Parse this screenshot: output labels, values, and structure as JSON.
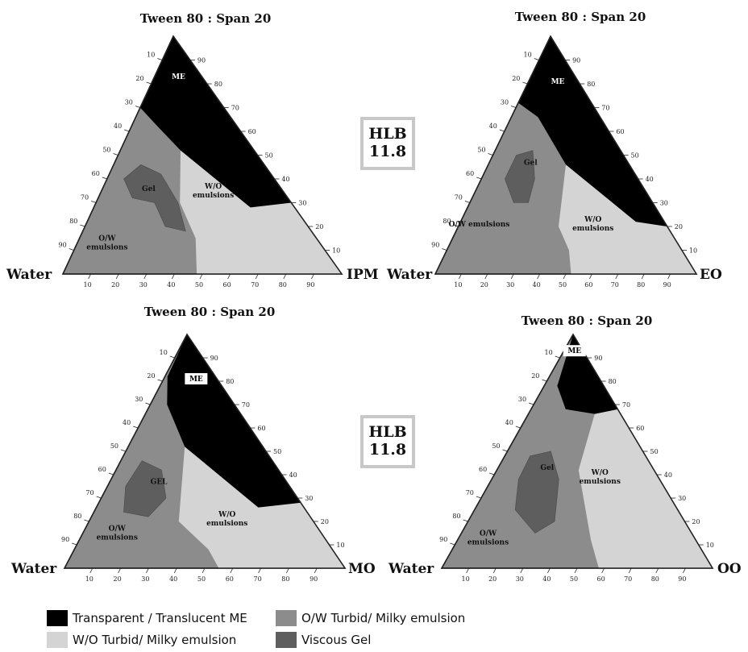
{
  "panels": [
    {
      "title": "Tween 80 : Span 20",
      "corner_left": "Water",
      "corner_right": "IPM",
      "labels": {
        "me": "ME",
        "wo": "W/O\nemulsions",
        "gel": "Gel",
        "ow": "O/W\nemulsions"
      }
    },
    {
      "title": "Tween 80 : Span 20",
      "corner_left": "Water",
      "corner_right": "EO",
      "labels": {
        "me": "ME",
        "wo": "W/O\nemulsions",
        "gel": "Gel",
        "ow": "O/W emulsions"
      }
    },
    {
      "title": "Tween 80 : Span 20",
      "corner_left": "Water",
      "corner_right": "MO",
      "labels": {
        "me": "ME",
        "wo": "W/O\nemulsions",
        "gel": "GEL",
        "ow": "O/W\nemulsions"
      }
    },
    {
      "title": "Tween 80 : Span 20",
      "corner_left": "Water",
      "corner_right": "OO",
      "labels": {
        "me": "ME",
        "wo": "W/O\nemulsions",
        "gel": "Gel",
        "ow": "O/W\nemulsions"
      }
    }
  ],
  "ticks": [
    "10",
    "20",
    "30",
    "40",
    "50",
    "60",
    "70",
    "80",
    "90"
  ],
  "hlb": {
    "label": "HLB",
    "value": "11.8"
  },
  "colors": {
    "me": "#000000",
    "ow": "#8c8c8c",
    "wo": "#d4d4d4",
    "gel": "#5e5e5e"
  },
  "legend": [
    {
      "label": "Transparent / Translucent ME",
      "color": "#000000"
    },
    {
      "label": "O/W Turbid/ Milky emulsion",
      "color": "#8c8c8c"
    },
    {
      "label": "W/O Turbid/ Milky emulsion",
      "color": "#d4d4d4"
    },
    {
      "label": "Viscous Gel",
      "color": "#5e5e5e"
    }
  ]
}
